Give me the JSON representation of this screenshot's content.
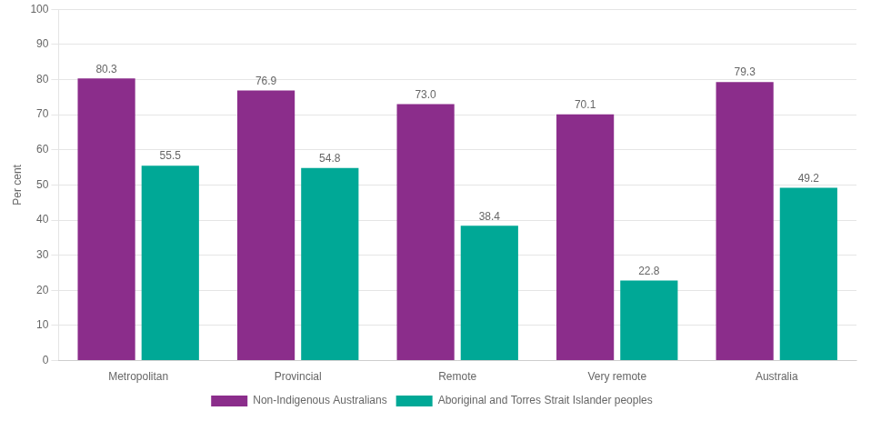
{
  "chart_data": {
    "type": "bar",
    "categories": [
      "Metropolitan",
      "Provincial",
      "Remote",
      "Very remote",
      "Australia"
    ],
    "series": [
      {
        "name": "Non-Indigenous Australians",
        "color": "#8B2D8B",
        "values": [
          80.3,
          76.9,
          73.0,
          70.1,
          79.3
        ],
        "value_labels": [
          "80.3",
          "76.9",
          "73.0",
          "70.1",
          "79.3"
        ]
      },
      {
        "name": "Aboriginal and Torres Strait Islander peoples",
        "color": "#00A896",
        "values": [
          55.5,
          54.8,
          38.4,
          22.8,
          49.2
        ]
      }
    ],
    "ylabel": "Per cent",
    "ylim": [
      0,
      100
    ],
    "yticks": [
      0,
      10,
      20,
      30,
      40,
      50,
      60,
      70,
      80,
      90,
      100
    ],
    "grid": true,
    "legend": "bottom",
    "data_labels": true
  }
}
